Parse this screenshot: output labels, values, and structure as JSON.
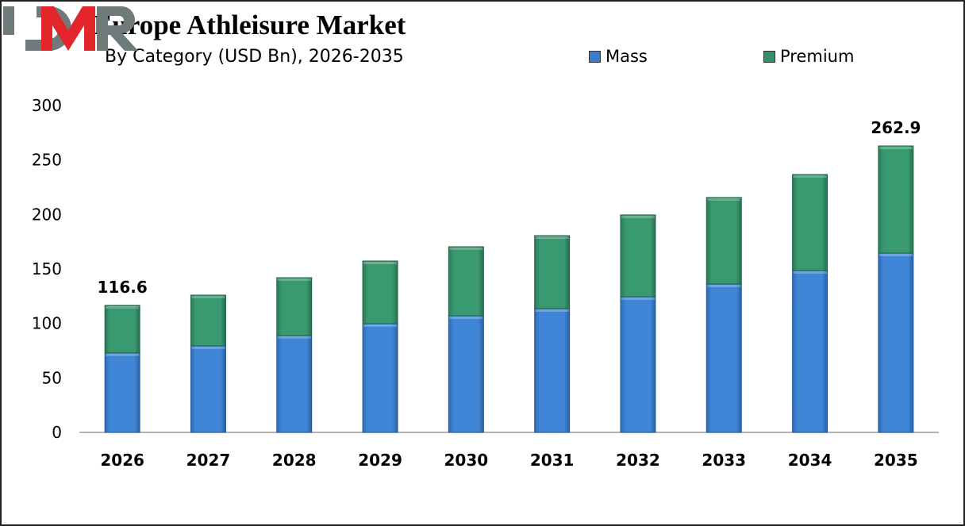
{
  "chart_data": {
    "type": "bar",
    "stacked": true,
    "title": "Europe Athleisure Market",
    "subtitle": "By Category (USD Bn), 2026-2035",
    "xlabel": "",
    "ylabel": "",
    "ylim": [
      0,
      300
    ],
    "yticks": [
      0,
      50,
      100,
      150,
      200,
      250,
      300
    ],
    "grid": false,
    "legend_placement": "top-right",
    "categories": [
      "2026",
      "2027",
      "2028",
      "2029",
      "2030",
      "2031",
      "2032",
      "2033",
      "2034",
      "2035"
    ],
    "series": [
      {
        "name": "Mass",
        "color": "#3a7dcc",
        "values": [
          73.0,
          79.5,
          89.0,
          99.8,
          107.0,
          113.6,
          124.5,
          136.2,
          148.6,
          164.6
        ]
      },
      {
        "name": "Premium",
        "color": "#34916a",
        "values": [
          43.6,
          46.5,
          53.0,
          57.5,
          63.4,
          67.0,
          75.1,
          79.4,
          88.1,
          98.3
        ]
      }
    ],
    "data_labels": [
      {
        "category": "2026",
        "text": "116.6"
      },
      {
        "category": "2035",
        "text": "262.9"
      }
    ]
  },
  "logo": {
    "text": "DMR",
    "colors": [
      "#6f7b7b",
      "#e3262b"
    ]
  }
}
